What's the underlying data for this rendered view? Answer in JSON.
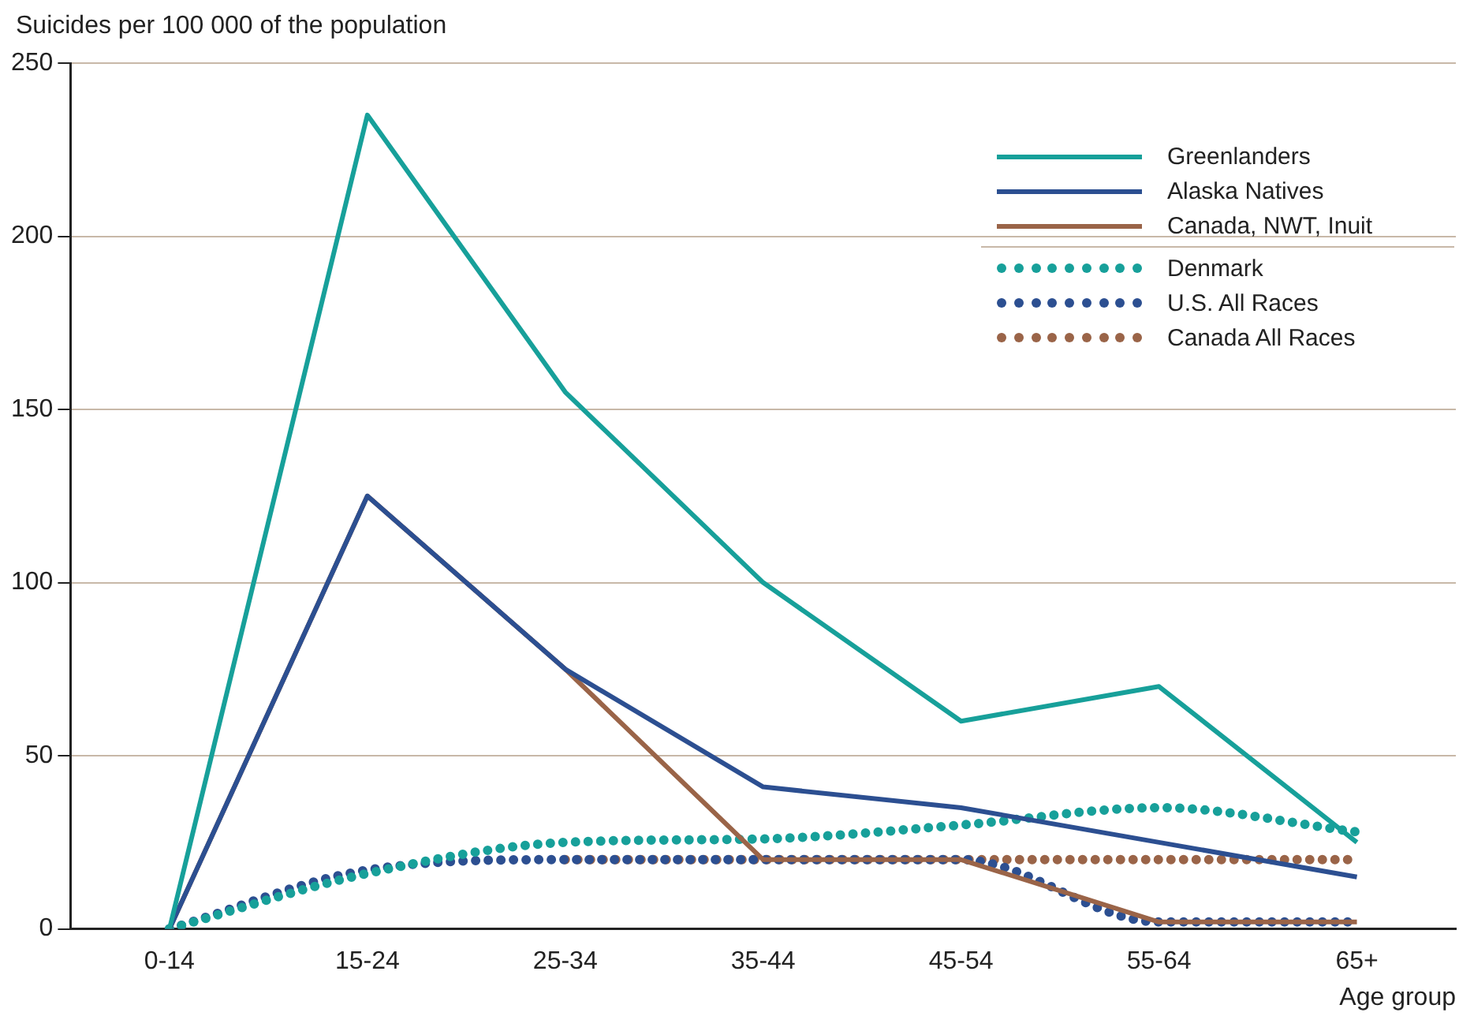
{
  "chart_data": {
    "type": "line",
    "ylabel": "Suicides per 100 000 of the population",
    "xlabel": "Age group",
    "categories": [
      "0-14",
      "15-24",
      "25-34",
      "35-44",
      "45-54",
      "55-64",
      "65+"
    ],
    "ylim": [
      0,
      250
    ],
    "yticks": [
      0,
      50,
      100,
      150,
      200,
      250
    ],
    "grid": "y",
    "legend": "top right",
    "marker": "none",
    "series": [
      {
        "name": "Greenlanders",
        "color": "#17a09a",
        "line_style": "solid",
        "values": [
          0,
          235,
          155,
          100,
          60,
          70,
          25
        ]
      },
      {
        "name": "Alaska Natives",
        "color": "#2c4f91",
        "line_style": "solid",
        "values": [
          0,
          125,
          75,
          41,
          35,
          25,
          15
        ]
      },
      {
        "name": "Canada, NWT, Inuit",
        "color": "#9a6448",
        "line_style": "solid",
        "values": [
          0,
          125,
          75,
          20,
          20,
          2,
          2
        ]
      },
      {
        "name": "Denmark",
        "color": "#17a09a",
        "line_style": "dotted",
        "values": [
          0,
          16,
          25,
          26,
          30,
          35,
          28
        ]
      },
      {
        "name": "U.S. All Races",
        "color": "#2c4f91",
        "line_style": "dotted",
        "values": [
          0,
          17,
          20,
          20,
          20,
          2,
          2
        ]
      },
      {
        "name": "Canada All Races",
        "color": "#9a6448",
        "line_style": "dotted",
        "values": [
          null,
          null,
          20,
          20,
          20,
          20,
          20
        ]
      }
    ]
  }
}
